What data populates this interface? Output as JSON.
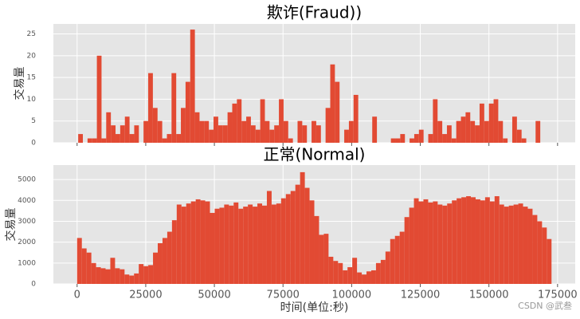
{
  "chart_data": [
    {
      "type": "histogram",
      "title": "欺诈(Fraud))",
      "ylabel": "交易量",
      "color": "#E24A33",
      "grid": true,
      "show_xtick_labels": false,
      "bins": [
        400,
        2100,
        3800,
        5500,
        7200,
        8900,
        10600,
        12300,
        14000,
        15700,
        17400,
        19100,
        20800,
        22500,
        24200,
        25900,
        27600,
        29300,
        31000,
        32700,
        34400,
        36100,
        37800,
        39500,
        41200,
        42900,
        44600,
        46300,
        48000,
        49700,
        51400,
        53100,
        54800,
        56500,
        58200,
        59900,
        61600,
        63300,
        65000,
        66700,
        68400,
        70100,
        71800,
        73500,
        75200,
        76900,
        78600,
        80300,
        82000,
        83700,
        85400,
        87100,
        88800,
        90500,
        92200,
        93900,
        95600,
        97300,
        99000,
        100700,
        102400,
        104100,
        105800,
        107500,
        109200,
        110900,
        112600,
        114300,
        116000,
        117700,
        119400,
        121100,
        122800,
        124500,
        126200,
        127900,
        129600,
        131300,
        133000,
        134700,
        136400,
        138100,
        139800,
        141500,
        143200,
        144900,
        146600,
        148300,
        150000,
        151700,
        153400,
        155100,
        156800,
        158500,
        160200,
        161900,
        163600,
        165300,
        167000,
        168700,
        170400
      ],
      "values": [
        2,
        0,
        1,
        1,
        20,
        1,
        7,
        4,
        2,
        4,
        6,
        2,
        4,
        0,
        5,
        16,
        8,
        5,
        1,
        2,
        16,
        2,
        8,
        14,
        26,
        7,
        5,
        5,
        3,
        6,
        4,
        4,
        7,
        9,
        10,
        5,
        6,
        4,
        3,
        10,
        5,
        3,
        4,
        10,
        5,
        1,
        0,
        5,
        4,
        0,
        5,
        4,
        0,
        8,
        18,
        14,
        0,
        3,
        5,
        11,
        0,
        0,
        0,
        6,
        0,
        0,
        0,
        1,
        1,
        2,
        0,
        1,
        2,
        3,
        0,
        2,
        10,
        5,
        2,
        4,
        1,
        5,
        6,
        7,
        5,
        4,
        9,
        5,
        9,
        10,
        5,
        1,
        0,
        6,
        3,
        1,
        0,
        0,
        5,
        0
      ],
      "xlim": [
        -8640,
        181432
      ],
      "ylim": [
        0,
        27.3
      ],
      "xticks": [
        0,
        25000,
        50000,
        75000,
        100000,
        125000,
        150000,
        175000
      ],
      "yticks": [
        0,
        5,
        10,
        15,
        20,
        25
      ]
    },
    {
      "type": "histogram",
      "title": "正常(Normal)",
      "ylabel": "交易量",
      "xlabel": "时间(单位:秒)",
      "color": "#E24A33",
      "grid": true,
      "show_xtick_labels": true,
      "bins": [
        0,
        1728,
        3456,
        5184,
        6912,
        8640,
        10368,
        12096,
        13824,
        15552,
        17280,
        19008,
        20736,
        22464,
        24192,
        25920,
        27648,
        29376,
        31104,
        32832,
        34560,
        36288,
        38016,
        39744,
        41472,
        43200,
        44928,
        46656,
        48384,
        50112,
        51840,
        53568,
        55296,
        57024,
        58752,
        60480,
        62208,
        63936,
        65664,
        67392,
        69120,
        70848,
        72576,
        74304,
        76032,
        77760,
        79488,
        81216,
        82944,
        84672,
        86400,
        88128,
        89856,
        91584,
        93312,
        95040,
        96768,
        98496,
        100224,
        101952,
        103680,
        105408,
        107136,
        108864,
        110592,
        112320,
        114048,
        115776,
        117504,
        119232,
        120960,
        122688,
        124416,
        126144,
        127872,
        129600,
        131328,
        133056,
        134784,
        136512,
        138240,
        139968,
        141696,
        143424,
        145152,
        146880,
        148608,
        150336,
        152064,
        153792,
        155520,
        157248,
        158976,
        160704,
        162432,
        164160,
        165888,
        167616,
        169344,
        171072,
        172800
      ],
      "values": [
        2200,
        1700,
        1500,
        1000,
        800,
        750,
        700,
        1250,
        750,
        700,
        450,
        400,
        500,
        950,
        850,
        900,
        1500,
        1950,
        2200,
        2500,
        3050,
        3800,
        3700,
        3850,
        3950,
        4050,
        4000,
        3950,
        3400,
        3600,
        3650,
        3800,
        3750,
        3900,
        3600,
        3700,
        3800,
        3700,
        3850,
        3750,
        4450,
        3800,
        3850,
        4100,
        4300,
        4450,
        4750,
        5350,
        4600,
        4000,
        3250,
        2350,
        2400,
        1300,
        1100,
        1000,
        650,
        800,
        1250,
        550,
        450,
        600,
        650,
        1000,
        1150,
        1550,
        2150,
        2300,
        2500,
        3200,
        3650,
        4100,
        3950,
        4050,
        3900,
        3950,
        3800,
        3750,
        3850,
        4000,
        4100,
        4150,
        4200,
        4150,
        4050,
        4000,
        4150,
        3950,
        4200,
        3800,
        3700,
        3750,
        3800,
        3850,
        3700,
        3600,
        3300,
        3000,
        2700,
        2150
      ],
      "xlim": [
        -8640,
        181432
      ],
      "ylim": [
        0,
        5690
      ],
      "xticks": [
        0,
        25000,
        50000,
        75000,
        100000,
        125000,
        150000,
        175000
      ],
      "yticks": [
        0,
        1000,
        2000,
        3000,
        4000,
        5000
      ]
    }
  ],
  "watermark": "CSDN @武叁"
}
